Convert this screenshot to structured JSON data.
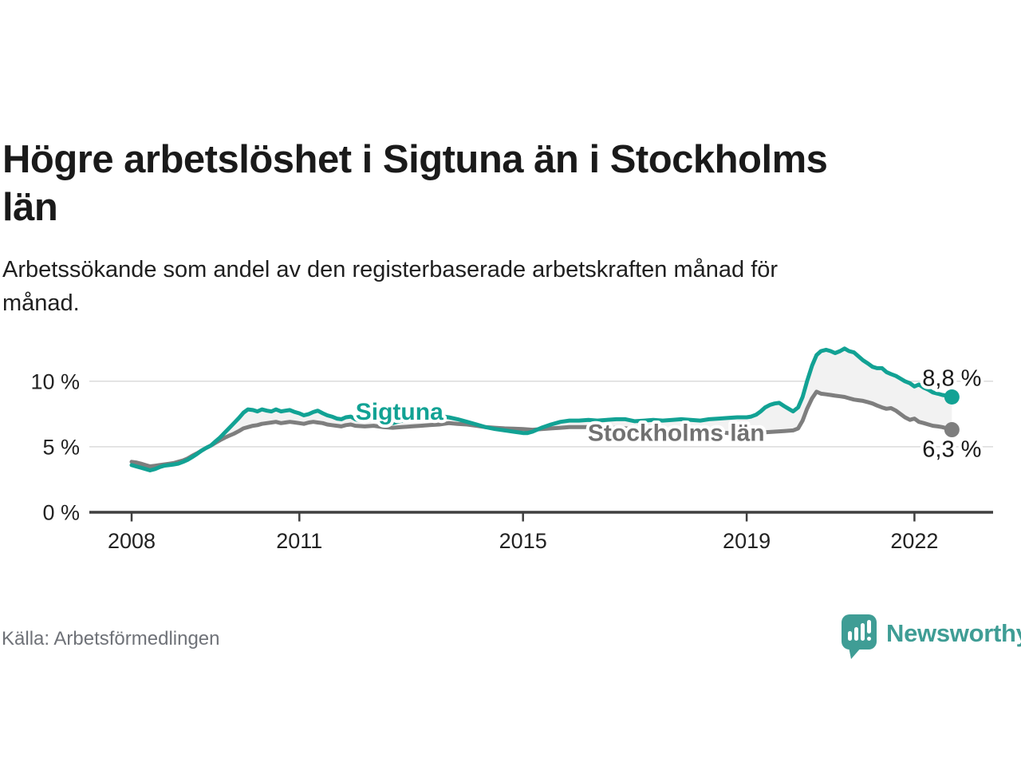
{
  "header": {
    "title": "Högre arbetslöshet i Sigtuna än i Stockholms län",
    "title_lines": [
      "Högre arbetslöshet i Sigtuna än i Stockholms",
      "län"
    ],
    "subtitle": "Arbetssökande som andel av den registerbaserade arbetskraften månad för månad.",
    "subtitle_lines": [
      "Arbetssökande som andel av den registerbaserade arbetskraften månad för",
      "månad."
    ]
  },
  "footer": {
    "source": "Källa: Arbetsförmedlingen",
    "brand": "Newsworthy"
  },
  "colors": {
    "sigtuna": "#12a294",
    "stockholm": "#7e7e7e",
    "stockholm_label": "#717171",
    "band": "#f2f2f2",
    "grid": "#dbdbdb",
    "axis": "#3f3f3f",
    "tick_text": "#222222",
    "value_text": "#1a1a1a",
    "brand_teal": "#3f9d95"
  },
  "chart_data": {
    "type": "line",
    "title": "Högre arbetslöshet i Sigtuna än i Stockholms län",
    "subtitle": "Arbetssökande som andel av den registerbaserade arbetskraften månad för månad.",
    "unit": "%",
    "legend_position": "inline-labels",
    "band_fill_between_series": true,
    "x_axis": {
      "ticks": [
        2008,
        2011,
        2015,
        2019,
        2022
      ],
      "range": [
        2007.25,
        2023.2
      ]
    },
    "y_axis": {
      "ticks": [
        {
          "value": 0,
          "label": "0 %"
        },
        {
          "value": 5,
          "label": "5 %"
        },
        {
          "value": 10,
          "label": "10 %"
        }
      ],
      "range": [
        0,
        13.5
      ],
      "grid": true
    },
    "series": [
      {
        "name": "Sigtuna",
        "color": "#12a294",
        "end_value": 8.8,
        "end_label": "8,8 %",
        "end_label_dy": -14,
        "label_anchor": {
          "x": 2012.79,
          "y": 7.05
        },
        "points": [
          [
            2008.0,
            3.6
          ],
          [
            2008.08,
            3.5
          ],
          [
            2008.17,
            3.4
          ],
          [
            2008.25,
            3.3
          ],
          [
            2008.33,
            3.2
          ],
          [
            2008.42,
            3.3
          ],
          [
            2008.5,
            3.45
          ],
          [
            2008.58,
            3.55
          ],
          [
            2008.67,
            3.6
          ],
          [
            2008.75,
            3.65
          ],
          [
            2008.83,
            3.7
          ],
          [
            2008.92,
            3.85
          ],
          [
            2009.0,
            4.0
          ],
          [
            2009.08,
            4.2
          ],
          [
            2009.17,
            4.45
          ],
          [
            2009.25,
            4.7
          ],
          [
            2009.33,
            4.9
          ],
          [
            2009.42,
            5.1
          ],
          [
            2009.5,
            5.4
          ],
          [
            2009.58,
            5.7
          ],
          [
            2009.67,
            6.1
          ],
          [
            2009.75,
            6.45
          ],
          [
            2009.83,
            6.8
          ],
          [
            2009.92,
            7.2
          ],
          [
            2010.0,
            7.6
          ],
          [
            2010.08,
            7.85
          ],
          [
            2010.17,
            7.8
          ],
          [
            2010.25,
            7.7
          ],
          [
            2010.33,
            7.85
          ],
          [
            2010.42,
            7.75
          ],
          [
            2010.5,
            7.7
          ],
          [
            2010.58,
            7.85
          ],
          [
            2010.67,
            7.7
          ],
          [
            2010.75,
            7.75
          ],
          [
            2010.83,
            7.8
          ],
          [
            2010.92,
            7.65
          ],
          [
            2011.0,
            7.55
          ],
          [
            2011.08,
            7.4
          ],
          [
            2011.17,
            7.5
          ],
          [
            2011.25,
            7.65
          ],
          [
            2011.33,
            7.75
          ],
          [
            2011.42,
            7.55
          ],
          [
            2011.5,
            7.4
          ],
          [
            2011.58,
            7.3
          ],
          [
            2011.67,
            7.15
          ],
          [
            2011.75,
            7.1
          ],
          [
            2011.83,
            7.25
          ],
          [
            2011.92,
            7.3
          ],
          [
            2012.0,
            7.1
          ],
          [
            2012.08,
            7.0
          ],
          [
            2012.17,
            7.05
          ],
          [
            2012.25,
            7.15
          ],
          [
            2012.33,
            7.2
          ],
          [
            2012.42,
            7.0
          ],
          [
            2012.5,
            6.9
          ],
          [
            2012.58,
            6.85
          ],
          [
            2012.67,
            6.8
          ],
          [
            2012.75,
            6.9
          ],
          [
            2012.83,
            7.0
          ],
          [
            2012.92,
            7.05
          ],
          [
            2013.0,
            7.0
          ],
          [
            2013.17,
            7.1
          ],
          [
            2013.33,
            7.25
          ],
          [
            2013.5,
            7.35
          ],
          [
            2013.67,
            7.25
          ],
          [
            2013.83,
            7.1
          ],
          [
            2014.0,
            6.9
          ],
          [
            2014.17,
            6.7
          ],
          [
            2014.33,
            6.5
          ],
          [
            2014.5,
            6.35
          ],
          [
            2014.67,
            6.25
          ],
          [
            2014.83,
            6.15
          ],
          [
            2015.0,
            6.05
          ],
          [
            2015.08,
            6.05
          ],
          [
            2015.17,
            6.15
          ],
          [
            2015.25,
            6.3
          ],
          [
            2015.33,
            6.45
          ],
          [
            2015.5,
            6.7
          ],
          [
            2015.67,
            6.9
          ],
          [
            2015.83,
            7.0
          ],
          [
            2016.0,
            7.0
          ],
          [
            2016.17,
            7.05
          ],
          [
            2016.33,
            7.0
          ],
          [
            2016.5,
            7.05
          ],
          [
            2016.67,
            7.1
          ],
          [
            2016.83,
            7.1
          ],
          [
            2017.0,
            6.95
          ],
          [
            2017.17,
            7.0
          ],
          [
            2017.33,
            7.05
          ],
          [
            2017.5,
            7.0
          ],
          [
            2017.67,
            7.05
          ],
          [
            2017.83,
            7.1
          ],
          [
            2018.0,
            7.05
          ],
          [
            2018.17,
            7.0
          ],
          [
            2018.33,
            7.1
          ],
          [
            2018.5,
            7.15
          ],
          [
            2018.67,
            7.2
          ],
          [
            2018.83,
            7.25
          ],
          [
            2019.0,
            7.25
          ],
          [
            2019.08,
            7.3
          ],
          [
            2019.17,
            7.45
          ],
          [
            2019.25,
            7.7
          ],
          [
            2019.33,
            8.0
          ],
          [
            2019.42,
            8.2
          ],
          [
            2019.5,
            8.3
          ],
          [
            2019.58,
            8.35
          ],
          [
            2019.67,
            8.1
          ],
          [
            2019.75,
            7.9
          ],
          [
            2019.83,
            7.7
          ],
          [
            2019.92,
            8.0
          ],
          [
            2020.0,
            8.8
          ],
          [
            2020.08,
            10.0
          ],
          [
            2020.17,
            11.2
          ],
          [
            2020.25,
            12.0
          ],
          [
            2020.33,
            12.3
          ],
          [
            2020.42,
            12.4
          ],
          [
            2020.5,
            12.3
          ],
          [
            2020.58,
            12.15
          ],
          [
            2020.67,
            12.3
          ],
          [
            2020.75,
            12.5
          ],
          [
            2020.83,
            12.3
          ],
          [
            2020.92,
            12.2
          ],
          [
            2021.0,
            11.9
          ],
          [
            2021.08,
            11.6
          ],
          [
            2021.17,
            11.35
          ],
          [
            2021.25,
            11.1
          ],
          [
            2021.33,
            11.0
          ],
          [
            2021.42,
            11.0
          ],
          [
            2021.5,
            10.7
          ],
          [
            2021.58,
            10.55
          ],
          [
            2021.67,
            10.4
          ],
          [
            2021.75,
            10.2
          ],
          [
            2021.83,
            10.0
          ],
          [
            2021.92,
            9.85
          ],
          [
            2022.0,
            9.6
          ],
          [
            2022.08,
            9.75
          ],
          [
            2022.17,
            9.5
          ],
          [
            2022.25,
            9.35
          ],
          [
            2022.33,
            9.15
          ],
          [
            2022.42,
            9.05
          ],
          [
            2022.5,
            8.95
          ],
          [
            2022.58,
            8.9
          ],
          [
            2022.67,
            8.8
          ]
        ]
      },
      {
        "name": "Stockholms län",
        "color": "#7e7e7e",
        "end_value": 6.3,
        "end_label": "6,3 %",
        "end_label_dy": 34,
        "label_anchor": {
          "x": 2017.74,
          "y": 5.45
        },
        "points": [
          [
            2008.0,
            3.85
          ],
          [
            2008.08,
            3.8
          ],
          [
            2008.17,
            3.7
          ],
          [
            2008.25,
            3.6
          ],
          [
            2008.33,
            3.5
          ],
          [
            2008.42,
            3.55
          ],
          [
            2008.5,
            3.6
          ],
          [
            2008.58,
            3.65
          ],
          [
            2008.67,
            3.7
          ],
          [
            2008.75,
            3.75
          ],
          [
            2008.83,
            3.85
          ],
          [
            2008.92,
            3.95
          ],
          [
            2009.0,
            4.1
          ],
          [
            2009.08,
            4.3
          ],
          [
            2009.17,
            4.5
          ],
          [
            2009.25,
            4.7
          ],
          [
            2009.33,
            4.9
          ],
          [
            2009.42,
            5.1
          ],
          [
            2009.5,
            5.3
          ],
          [
            2009.58,
            5.5
          ],
          [
            2009.67,
            5.7
          ],
          [
            2009.75,
            5.85
          ],
          [
            2009.83,
            6.0
          ],
          [
            2009.92,
            6.2
          ],
          [
            2010.0,
            6.4
          ],
          [
            2010.08,
            6.5
          ],
          [
            2010.17,
            6.6
          ],
          [
            2010.25,
            6.65
          ],
          [
            2010.33,
            6.75
          ],
          [
            2010.42,
            6.8
          ],
          [
            2010.5,
            6.85
          ],
          [
            2010.58,
            6.9
          ],
          [
            2010.67,
            6.8
          ],
          [
            2010.75,
            6.85
          ],
          [
            2010.83,
            6.9
          ],
          [
            2010.92,
            6.85
          ],
          [
            2011.0,
            6.8
          ],
          [
            2011.08,
            6.75
          ],
          [
            2011.17,
            6.85
          ],
          [
            2011.25,
            6.9
          ],
          [
            2011.33,
            6.85
          ],
          [
            2011.42,
            6.8
          ],
          [
            2011.5,
            6.7
          ],
          [
            2011.58,
            6.65
          ],
          [
            2011.67,
            6.6
          ],
          [
            2011.75,
            6.55
          ],
          [
            2011.83,
            6.65
          ],
          [
            2011.92,
            6.7
          ],
          [
            2012.0,
            6.6
          ],
          [
            2012.17,
            6.55
          ],
          [
            2012.33,
            6.6
          ],
          [
            2012.5,
            6.5
          ],
          [
            2012.67,
            6.45
          ],
          [
            2012.83,
            6.5
          ],
          [
            2013.0,
            6.55
          ],
          [
            2013.17,
            6.6
          ],
          [
            2013.33,
            6.65
          ],
          [
            2013.5,
            6.7
          ],
          [
            2013.67,
            6.8
          ],
          [
            2013.83,
            6.75
          ],
          [
            2014.0,
            6.7
          ],
          [
            2014.17,
            6.6
          ],
          [
            2014.33,
            6.5
          ],
          [
            2014.5,
            6.45
          ],
          [
            2014.67,
            6.4
          ],
          [
            2014.83,
            6.38
          ],
          [
            2015.0,
            6.35
          ],
          [
            2015.17,
            6.3
          ],
          [
            2015.33,
            6.35
          ],
          [
            2015.5,
            6.4
          ],
          [
            2015.67,
            6.45
          ],
          [
            2015.83,
            6.5
          ],
          [
            2016.0,
            6.5
          ],
          [
            2016.17,
            6.5
          ],
          [
            2016.33,
            6.45
          ],
          [
            2016.5,
            6.4
          ],
          [
            2016.67,
            6.45
          ],
          [
            2016.83,
            6.4
          ],
          [
            2017.0,
            6.35
          ],
          [
            2017.17,
            6.3
          ],
          [
            2017.33,
            6.35
          ],
          [
            2017.5,
            6.3
          ],
          [
            2017.67,
            6.25
          ],
          [
            2017.83,
            6.3
          ],
          [
            2018.0,
            6.2
          ],
          [
            2018.17,
            6.15
          ],
          [
            2018.33,
            6.1
          ],
          [
            2018.5,
            6.1
          ],
          [
            2018.67,
            6.05
          ],
          [
            2018.83,
            6.0
          ],
          [
            2019.0,
            6.0
          ],
          [
            2019.17,
            6.1
          ],
          [
            2019.33,
            6.1
          ],
          [
            2019.5,
            6.15
          ],
          [
            2019.67,
            6.2
          ],
          [
            2019.83,
            6.25
          ],
          [
            2019.92,
            6.4
          ],
          [
            2020.0,
            7.0
          ],
          [
            2020.08,
            7.9
          ],
          [
            2020.17,
            8.7
          ],
          [
            2020.25,
            9.2
          ],
          [
            2020.33,
            9.05
          ],
          [
            2020.42,
            9.0
          ],
          [
            2020.5,
            8.95
          ],
          [
            2020.58,
            8.9
          ],
          [
            2020.67,
            8.85
          ],
          [
            2020.75,
            8.8
          ],
          [
            2020.83,
            8.7
          ],
          [
            2020.92,
            8.6
          ],
          [
            2021.0,
            8.55
          ],
          [
            2021.08,
            8.5
          ],
          [
            2021.17,
            8.4
          ],
          [
            2021.25,
            8.3
          ],
          [
            2021.33,
            8.15
          ],
          [
            2021.42,
            8.0
          ],
          [
            2021.5,
            7.9
          ],
          [
            2021.58,
            7.95
          ],
          [
            2021.67,
            7.75
          ],
          [
            2021.75,
            7.5
          ],
          [
            2021.83,
            7.25
          ],
          [
            2021.92,
            7.05
          ],
          [
            2022.0,
            7.15
          ],
          [
            2022.08,
            6.9
          ],
          [
            2022.17,
            6.8
          ],
          [
            2022.25,
            6.7
          ],
          [
            2022.33,
            6.6
          ],
          [
            2022.42,
            6.55
          ],
          [
            2022.5,
            6.5
          ],
          [
            2022.58,
            6.4
          ],
          [
            2022.67,
            6.3
          ]
        ]
      }
    ]
  }
}
